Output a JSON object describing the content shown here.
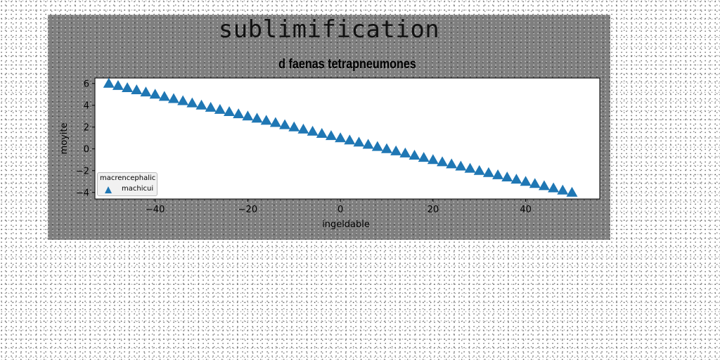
{
  "figure": {
    "suptitle": "sublimification"
  },
  "chart_data": {
    "type": "scatter",
    "title": "d faenas tetrapneumones",
    "xlabel": "ingeldable",
    "ylabel": "moyite",
    "xlim": [
      -53,
      56
    ],
    "ylim": [
      -4.6,
      6.5
    ],
    "xticks": [
      -40,
      -20,
      0,
      20,
      40
    ],
    "yticks": [
      -4,
      -2,
      0,
      2,
      4,
      6
    ],
    "xtick_labels": [
      "−40",
      "−20",
      "0",
      "20",
      "40"
    ],
    "ytick_labels": [
      "−4",
      "−2",
      "0",
      "2",
      "4",
      "6"
    ],
    "grid": false,
    "legend": {
      "title": "macrencephalic",
      "placement": "lower-left"
    },
    "series": [
      {
        "name": "machicui",
        "marker": "triangle-up",
        "color": "#1f77b4",
        "x_start": -50,
        "x_end": 50,
        "count": 51,
        "y_start": 6.0,
        "y_end": -4.0
      }
    ]
  }
}
